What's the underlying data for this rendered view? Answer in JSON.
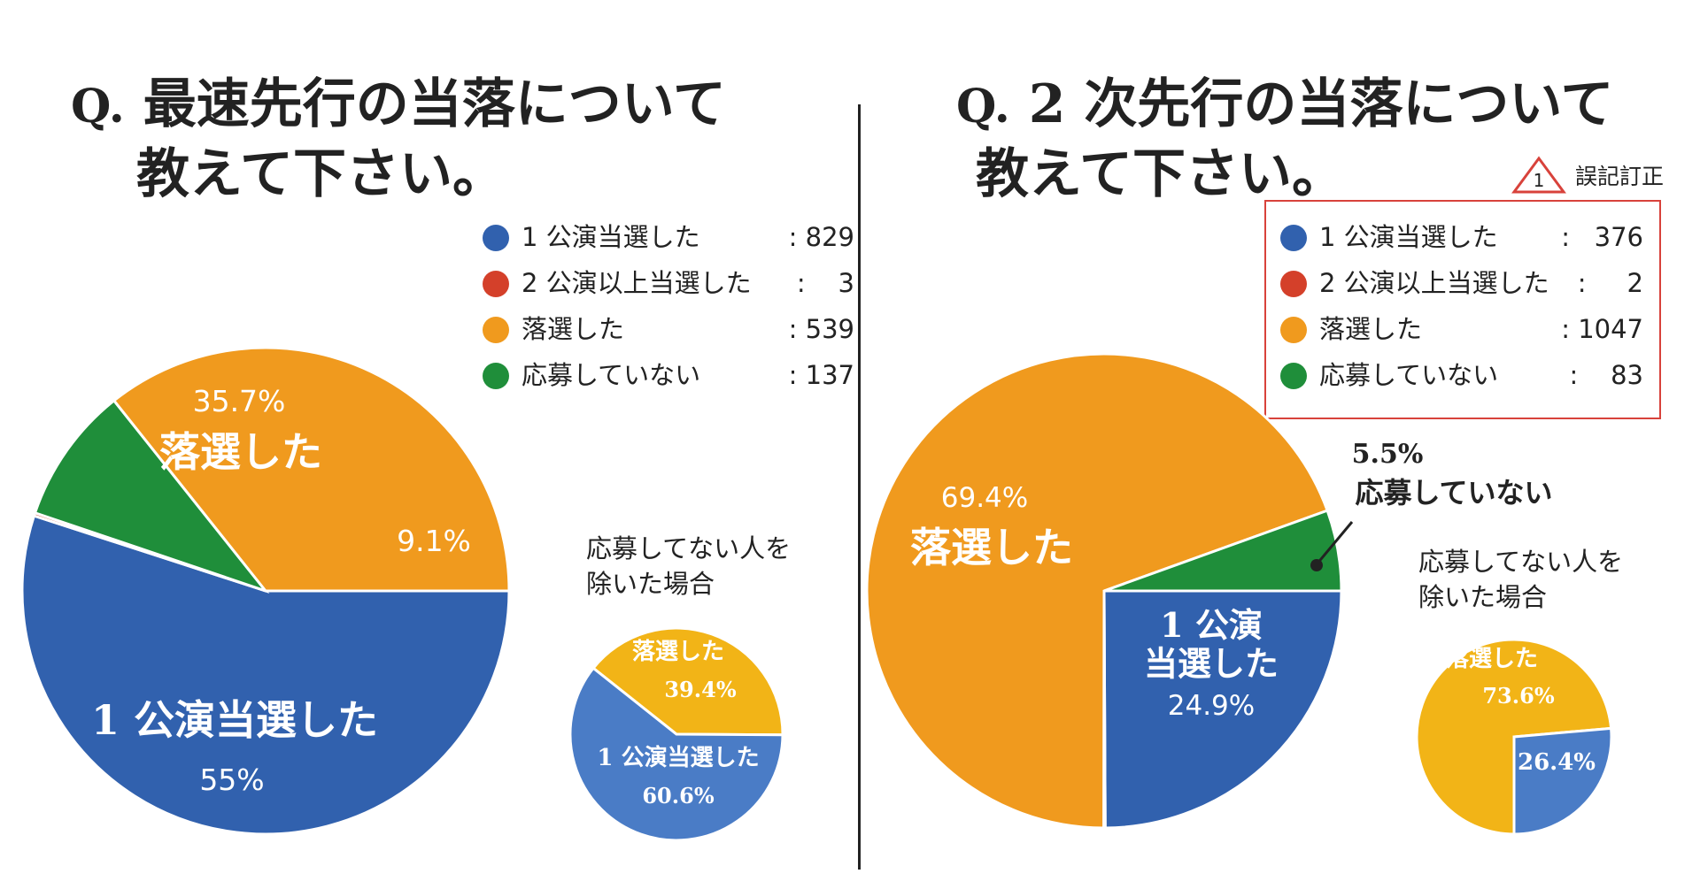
{
  "colors": {
    "blue": "#3161ae",
    "red": "#d4402a",
    "orange": "#f09a1e",
    "green": "#1f8e3a",
    "small_blue": "#4a7cc6",
    "small_yellow": "#f2b417",
    "alert_red": "#d8423b"
  },
  "left": {
    "title_prefix": "Q.",
    "title_line1": "最速先行の当落について",
    "title_line2": "教えて下さい。",
    "legend": [
      {
        "label": "1 公演当選した",
        "value": ": 829",
        "color": "#3161ae"
      },
      {
        "label": "2 公演以上当選した",
        "value": ":    3",
        "color": "#d4402a"
      },
      {
        "label": "落選した",
        "value": ": 539",
        "color": "#f09a1e"
      },
      {
        "label": "応募していない",
        "value": ": 137",
        "color": "#1f8e3a"
      }
    ],
    "sub_caption": "応募してない人を\n除いた場合"
  },
  "right": {
    "title_prefix": "Q.",
    "title_line1": "2 次先行の当落について",
    "title_line2": "教えて下さい。",
    "notice_icon": "warning-triangle-icon",
    "notice_number": "1",
    "notice_text": "誤記訂正",
    "legend": [
      {
        "label": "1 公演当選した",
        "value": ":   376",
        "color": "#3161ae"
      },
      {
        "label": "2 公演以上当選した",
        "value": ":     2",
        "color": "#d4402a"
      },
      {
        "label": "落選した",
        "value": ": 1047",
        "color": "#f09a1e"
      },
      {
        "label": "応募していない",
        "value": ":    83",
        "color": "#1f8e3a"
      }
    ],
    "sub_caption": "応募してない人を\n除いた場合"
  },
  "chart_data": [
    {
      "type": "pie",
      "title": "Q. 最速先行の当落について教えて下さい。",
      "categories": [
        "1 公演当選した",
        "2 公演以上当選した",
        "落選した",
        "応募していない"
      ],
      "values": [
        829,
        3,
        539,
        137
      ],
      "slices": [
        {
          "name": "1 公演当選した",
          "value": 829,
          "percent": 55,
          "color": "#3161ae",
          "pct_text": "55%",
          "label_text": "1 公演当選した"
        },
        {
          "name": "2 公演以上当選した",
          "value": 3,
          "percent": 0.2,
          "color": "#d4402a",
          "pct_text": "",
          "label_text": ""
        },
        {
          "name": "落選した",
          "value": 539,
          "percent": 35.7,
          "color": "#f09a1e",
          "pct_text": "35.7%",
          "label_text": "落選した"
        },
        {
          "name": "応募していない",
          "value": 137,
          "percent": 9.1,
          "color": "#1f8e3a",
          "pct_text": "9.1%",
          "label_text": ""
        }
      ],
      "legend_position": "top-right"
    },
    {
      "type": "pie",
      "title": "応募してない人を除いた場合",
      "slices": [
        {
          "name": "落選した",
          "percent": 39.4,
          "color": "#f2b417",
          "pct_text": "39.4%",
          "label_text": "落選した"
        },
        {
          "name": "1 公演当選した",
          "percent": 60.6,
          "color": "#4a7cc6",
          "pct_text": "60.6%",
          "label_text": "1 公演当選した"
        }
      ]
    },
    {
      "type": "pie",
      "title": "Q. 2 次先行の当落について教えて下さい。",
      "categories": [
        "1 公演当選した",
        "2 公演以上当選した",
        "落選した",
        "応募していない"
      ],
      "values": [
        376,
        2,
        1047,
        83
      ],
      "slices": [
        {
          "name": "1 公演当選した",
          "value": 376,
          "percent": 24.9,
          "color": "#3161ae",
          "pct_text": "24.9%",
          "label_text": "1 公演\n当選した"
        },
        {
          "name": "2 公演以上当選した",
          "value": 2,
          "percent": 0.1,
          "color": "#d4402a",
          "pct_text": "",
          "label_text": ""
        },
        {
          "name": "落選した",
          "value": 1047,
          "percent": 69.4,
          "color": "#f09a1e",
          "pct_text": "69.4%",
          "label_text": "落選した"
        },
        {
          "name": "応募していない",
          "value": 83,
          "percent": 5.5,
          "color": "#1f8e3a",
          "pct_text": "5.5%",
          "label_text": "応募していない"
        }
      ],
      "legend_position": "top-right"
    },
    {
      "type": "pie",
      "title": "応募してない人を除いた場合",
      "slices": [
        {
          "name": "落選した",
          "percent": 73.6,
          "color": "#f2b417",
          "pct_text": "73.6%",
          "label_text": "落選した"
        },
        {
          "name": "1 公演当選した",
          "percent": 26.4,
          "color": "#4a7cc6",
          "pct_text": "26.4%",
          "label_text": ""
        }
      ]
    }
  ]
}
